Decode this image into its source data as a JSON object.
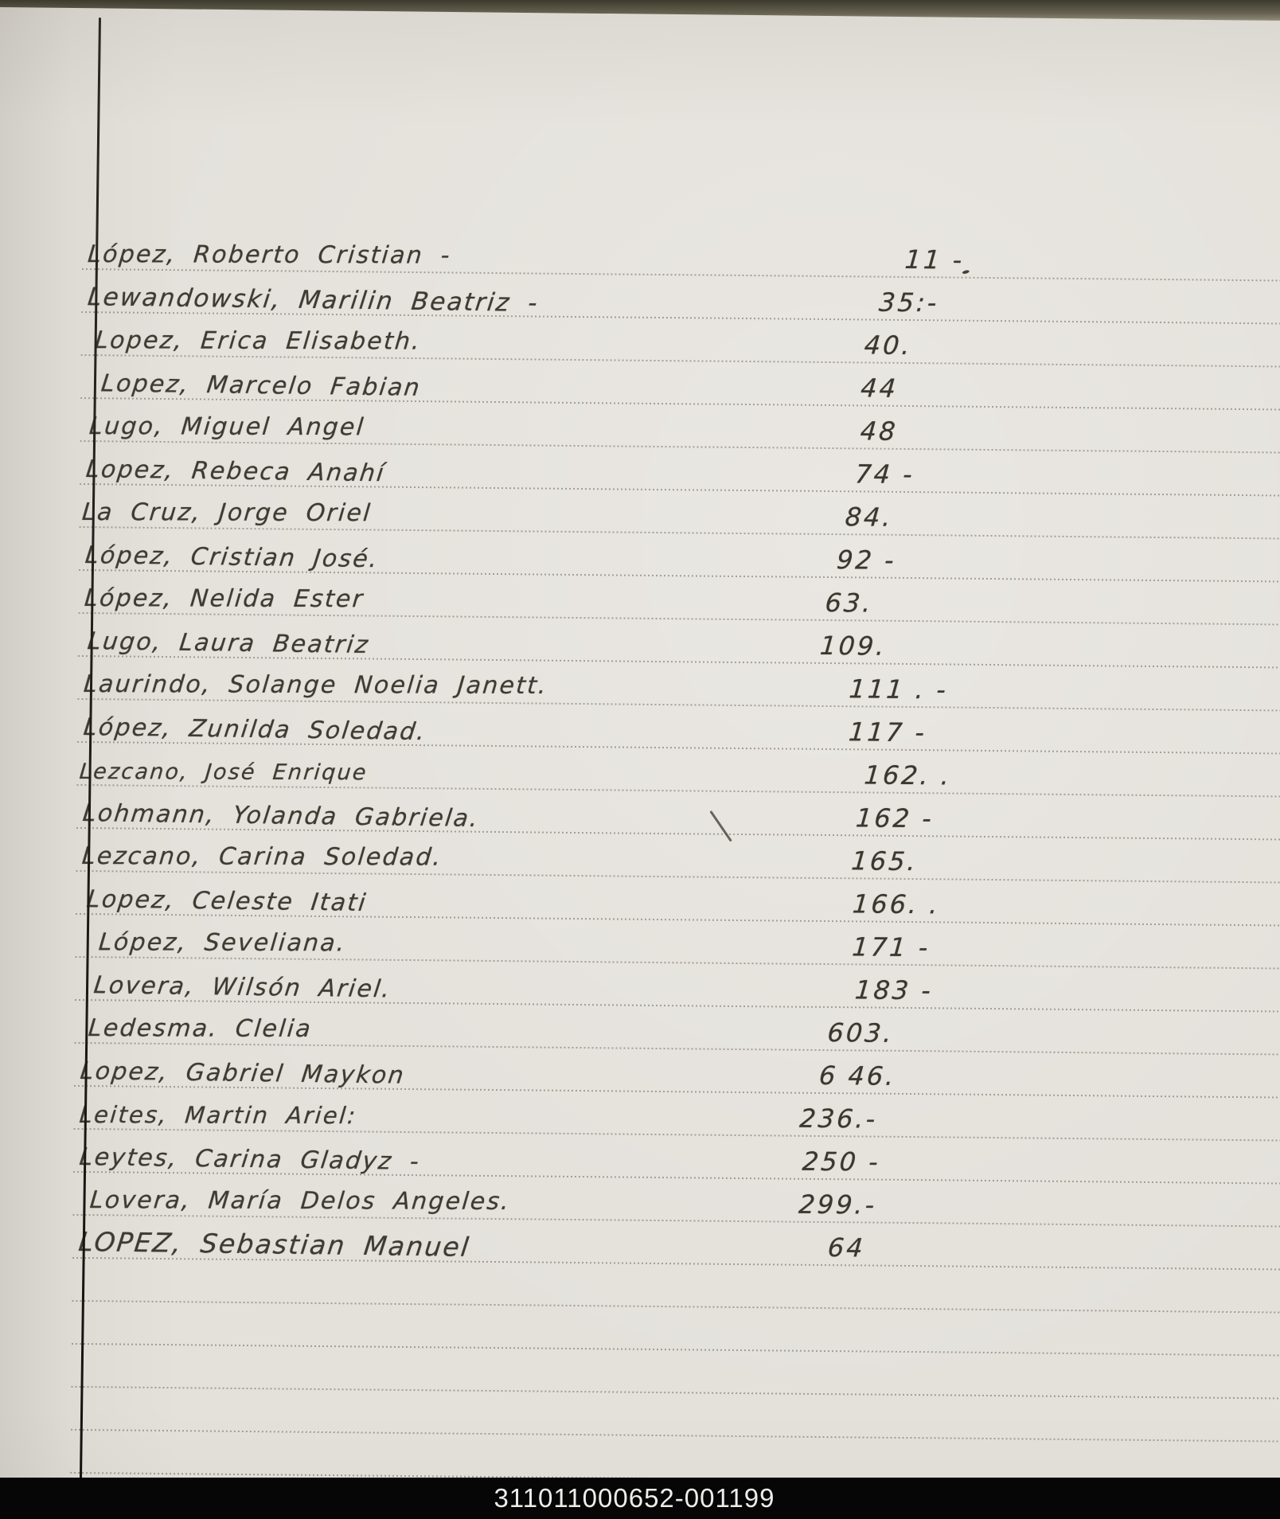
{
  "document": {
    "footer_code": "311011000652-001199",
    "entries": [
      {
        "name": "López, Roberto Cristian -",
        "value": "11 -"
      },
      {
        "name": "Lewandowski, Marilin Beatriz -",
        "value": "35:-"
      },
      {
        "name": "Lopez, Erica Elisabeth.",
        "value": "40."
      },
      {
        "name": "Lopez, Marcelo Fabian",
        "value": "44"
      },
      {
        "name": "Lugo, Miguel Angel",
        "value": "48"
      },
      {
        "name": "Lopez, Rebeca Anahí",
        "value": "74 -"
      },
      {
        "name": "La Cruz, Jorge Oriel",
        "value": "84."
      },
      {
        "name": "López, Cristian José.",
        "value": "92 -"
      },
      {
        "name": "López, Nelida Ester",
        "value": "63."
      },
      {
        "name": "Lugo, Laura Beatriz",
        "value": "109."
      },
      {
        "name": "Laurindo, Solange Noelia Janett.",
        "value": "111 . -"
      },
      {
        "name": "López, Zunilda Soledad.",
        "value": "117 -"
      },
      {
        "name": "Lezcano, José Enrique",
        "value": "162. ."
      },
      {
        "name": "Lohmann, Yolanda Gabriela.",
        "value": "162 -"
      },
      {
        "name": "Lezcano, Carina Soledad.",
        "value": "165."
      },
      {
        "name": "Lopez, Celeste Itati",
        "value": "166. ."
      },
      {
        "name": "López, Seveliana.",
        "value": "171 -"
      },
      {
        "name": "Lovera, Wilsón Ariel.",
        "value": "183 -"
      },
      {
        "name": "Ledesma. Clelia",
        "value": "603."
      },
      {
        "name": "Lopez, Gabriel Maykon",
        "value": "6 46."
      },
      {
        "name": "Leites, Martin Ariel:",
        "value": "236.-"
      },
      {
        "name": "Leytes, Carina Gladyz -",
        "value": "250 -"
      },
      {
        "name": "Lovera, María Delos Angeles.",
        "value": "299.-"
      },
      {
        "name": "LOPEZ, Sebastian Manuel",
        "value": "64"
      }
    ],
    "stray_marks": [
      {
        "type": "diagonal-pen-stroke"
      },
      {
        "type": "ink-speck"
      }
    ],
    "colors": {
      "paper": "#e4e1db",
      "ink": "#3e3c32",
      "rule_line": "#686050",
      "page_top_edge": "#3d3a2e",
      "footer_bg": "#060606",
      "footer_text": "#eeedeb"
    }
  }
}
